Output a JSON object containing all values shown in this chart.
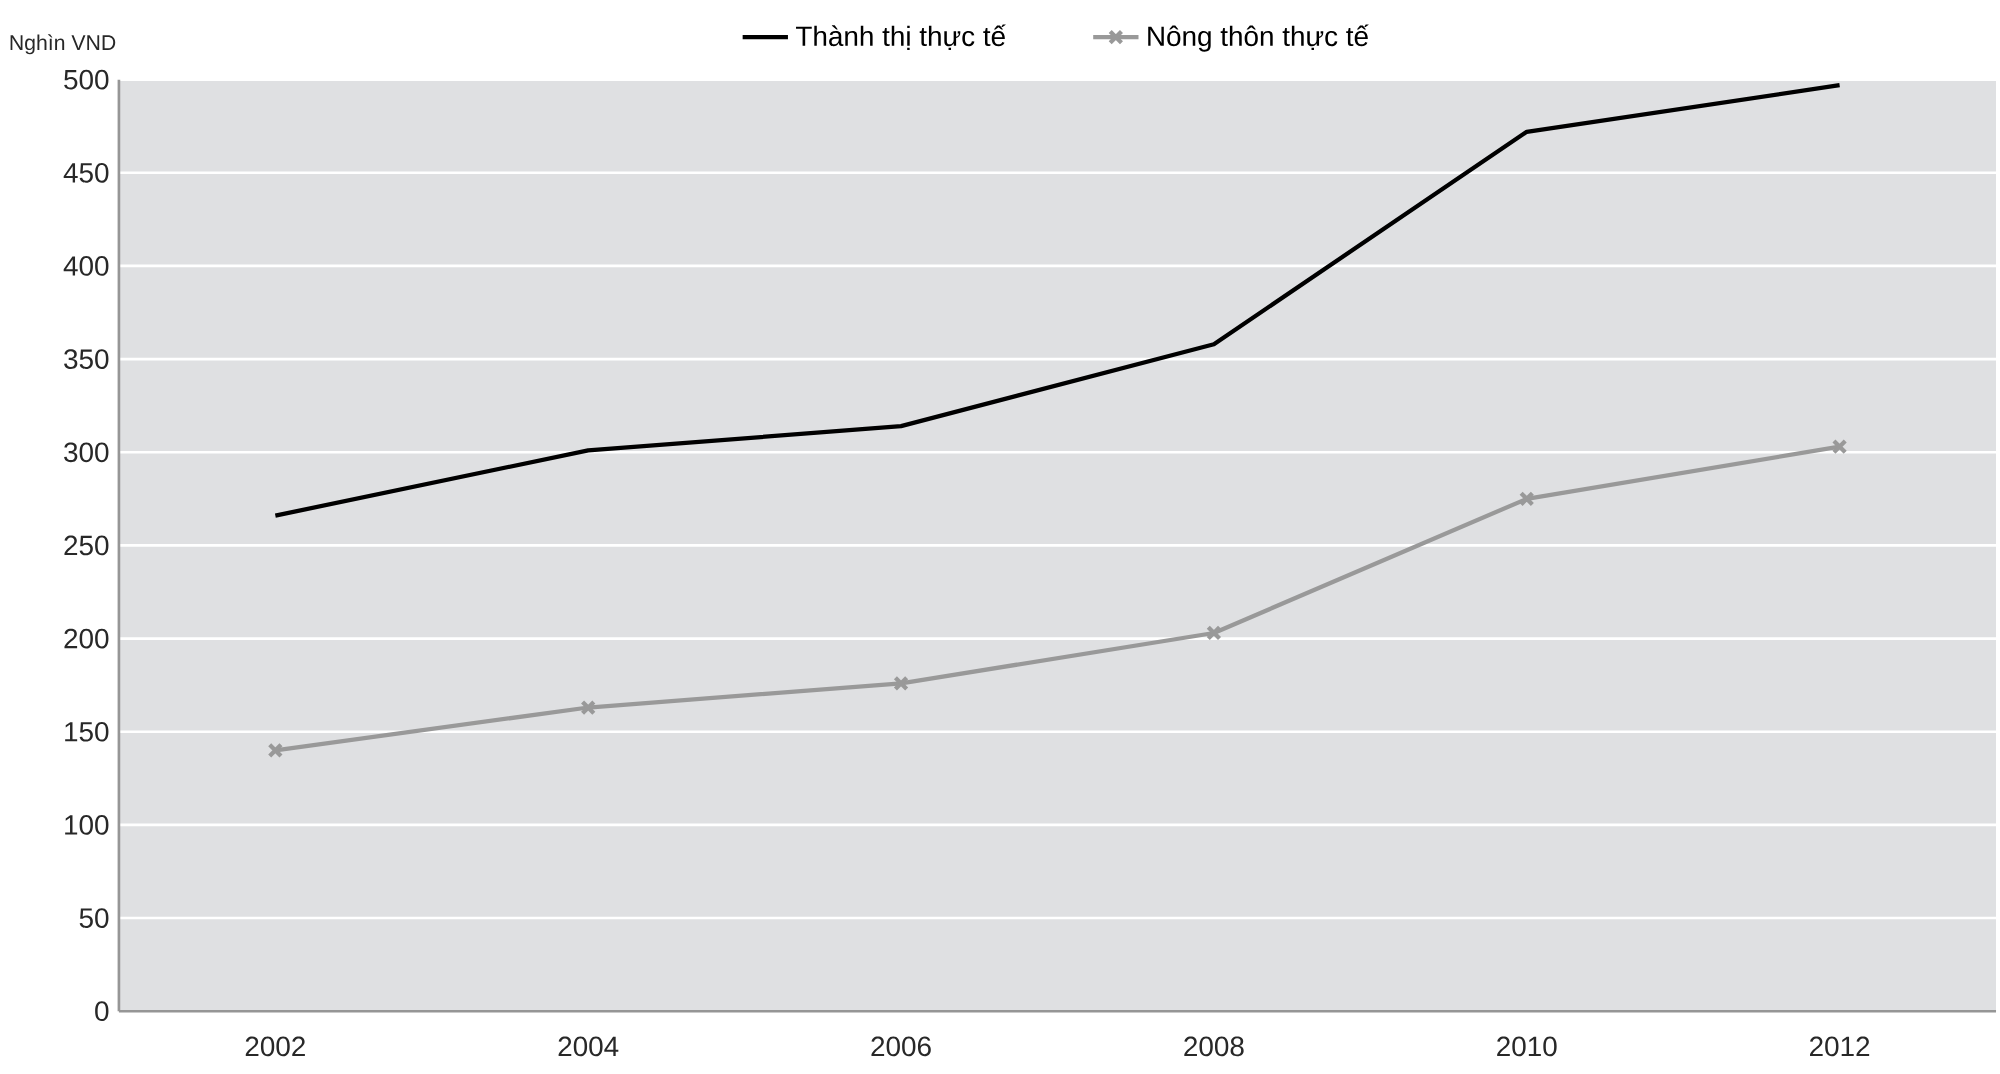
{
  "chart_data": {
    "type": "line",
    "ylabel": "Nghìn VND",
    "categories": [
      "2002",
      "2004",
      "2006",
      "2008",
      "2010",
      "2012"
    ],
    "series": [
      {
        "name": "Thành thị thực tế",
        "color": "#000000",
        "marker": "none",
        "values": [
          266,
          301,
          314,
          358,
          472,
          497
        ]
      },
      {
        "name": "Nông thôn thực tế",
        "color": "#999999",
        "marker": "cross",
        "values": [
          140,
          163,
          176,
          203,
          275,
          303
        ]
      }
    ],
    "ylim": [
      0,
      500
    ],
    "yticks": [
      0,
      50,
      100,
      150,
      200,
      250,
      300,
      350,
      400,
      450,
      500
    ],
    "grid": "y",
    "legend": "top",
    "line_style": "solid"
  }
}
